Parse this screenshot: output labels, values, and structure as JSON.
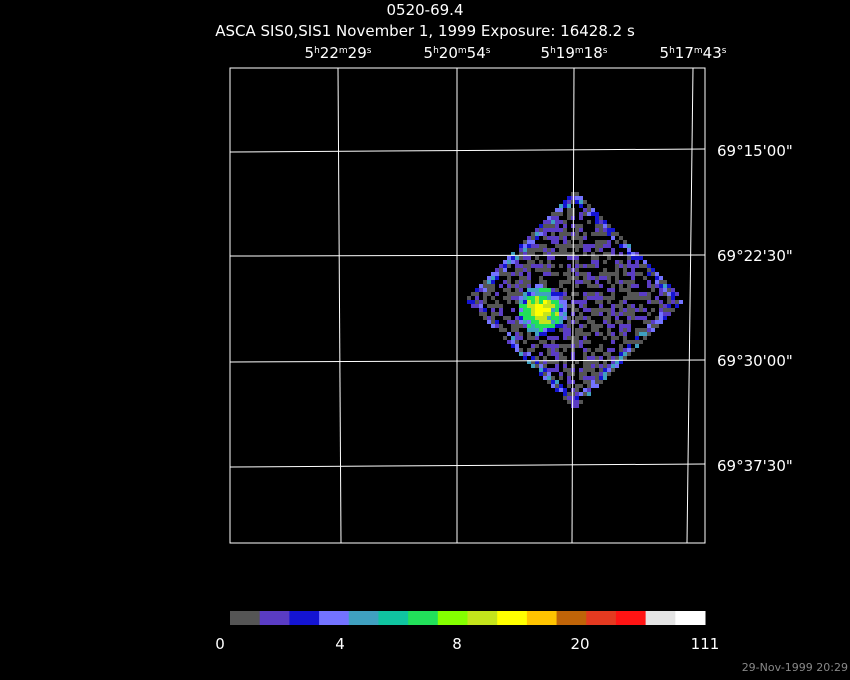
{
  "header": {
    "title": "0520-69.4",
    "subtitle": "ASCA SIS0,SIS1 November 1, 1999 Exposure: 16428.2 s"
  },
  "ra_labels": [
    [
      "5",
      "h",
      "22",
      "m",
      "29",
      "s"
    ],
    [
      "5",
      "h",
      "20",
      "m",
      "54",
      "s"
    ],
    [
      "5",
      "h",
      "19",
      "m",
      "18",
      "s"
    ],
    [
      "5",
      "h",
      "17",
      "m",
      "43",
      "s"
    ]
  ],
  "dec_labels": [
    "69°15'00\"",
    "69°22'30\"",
    "69°30'00\"",
    "69°37'30\""
  ],
  "colorbar": {
    "colors": [
      "#555555",
      "#5a3cc4",
      "#1414d2",
      "#7373ff",
      "#3fa0c0",
      "#10c4a0",
      "#22e05a",
      "#84ff00",
      "#c4e41c",
      "#ffff00",
      "#ffc400",
      "#c06408",
      "#e43a20",
      "#ff1414",
      "#e4e4e4",
      "#ffffff"
    ],
    "labels": [
      "0",
      "4",
      "8",
      "20",
      "111"
    ]
  },
  "timestamp": "29-Nov-1999 20:29"
}
